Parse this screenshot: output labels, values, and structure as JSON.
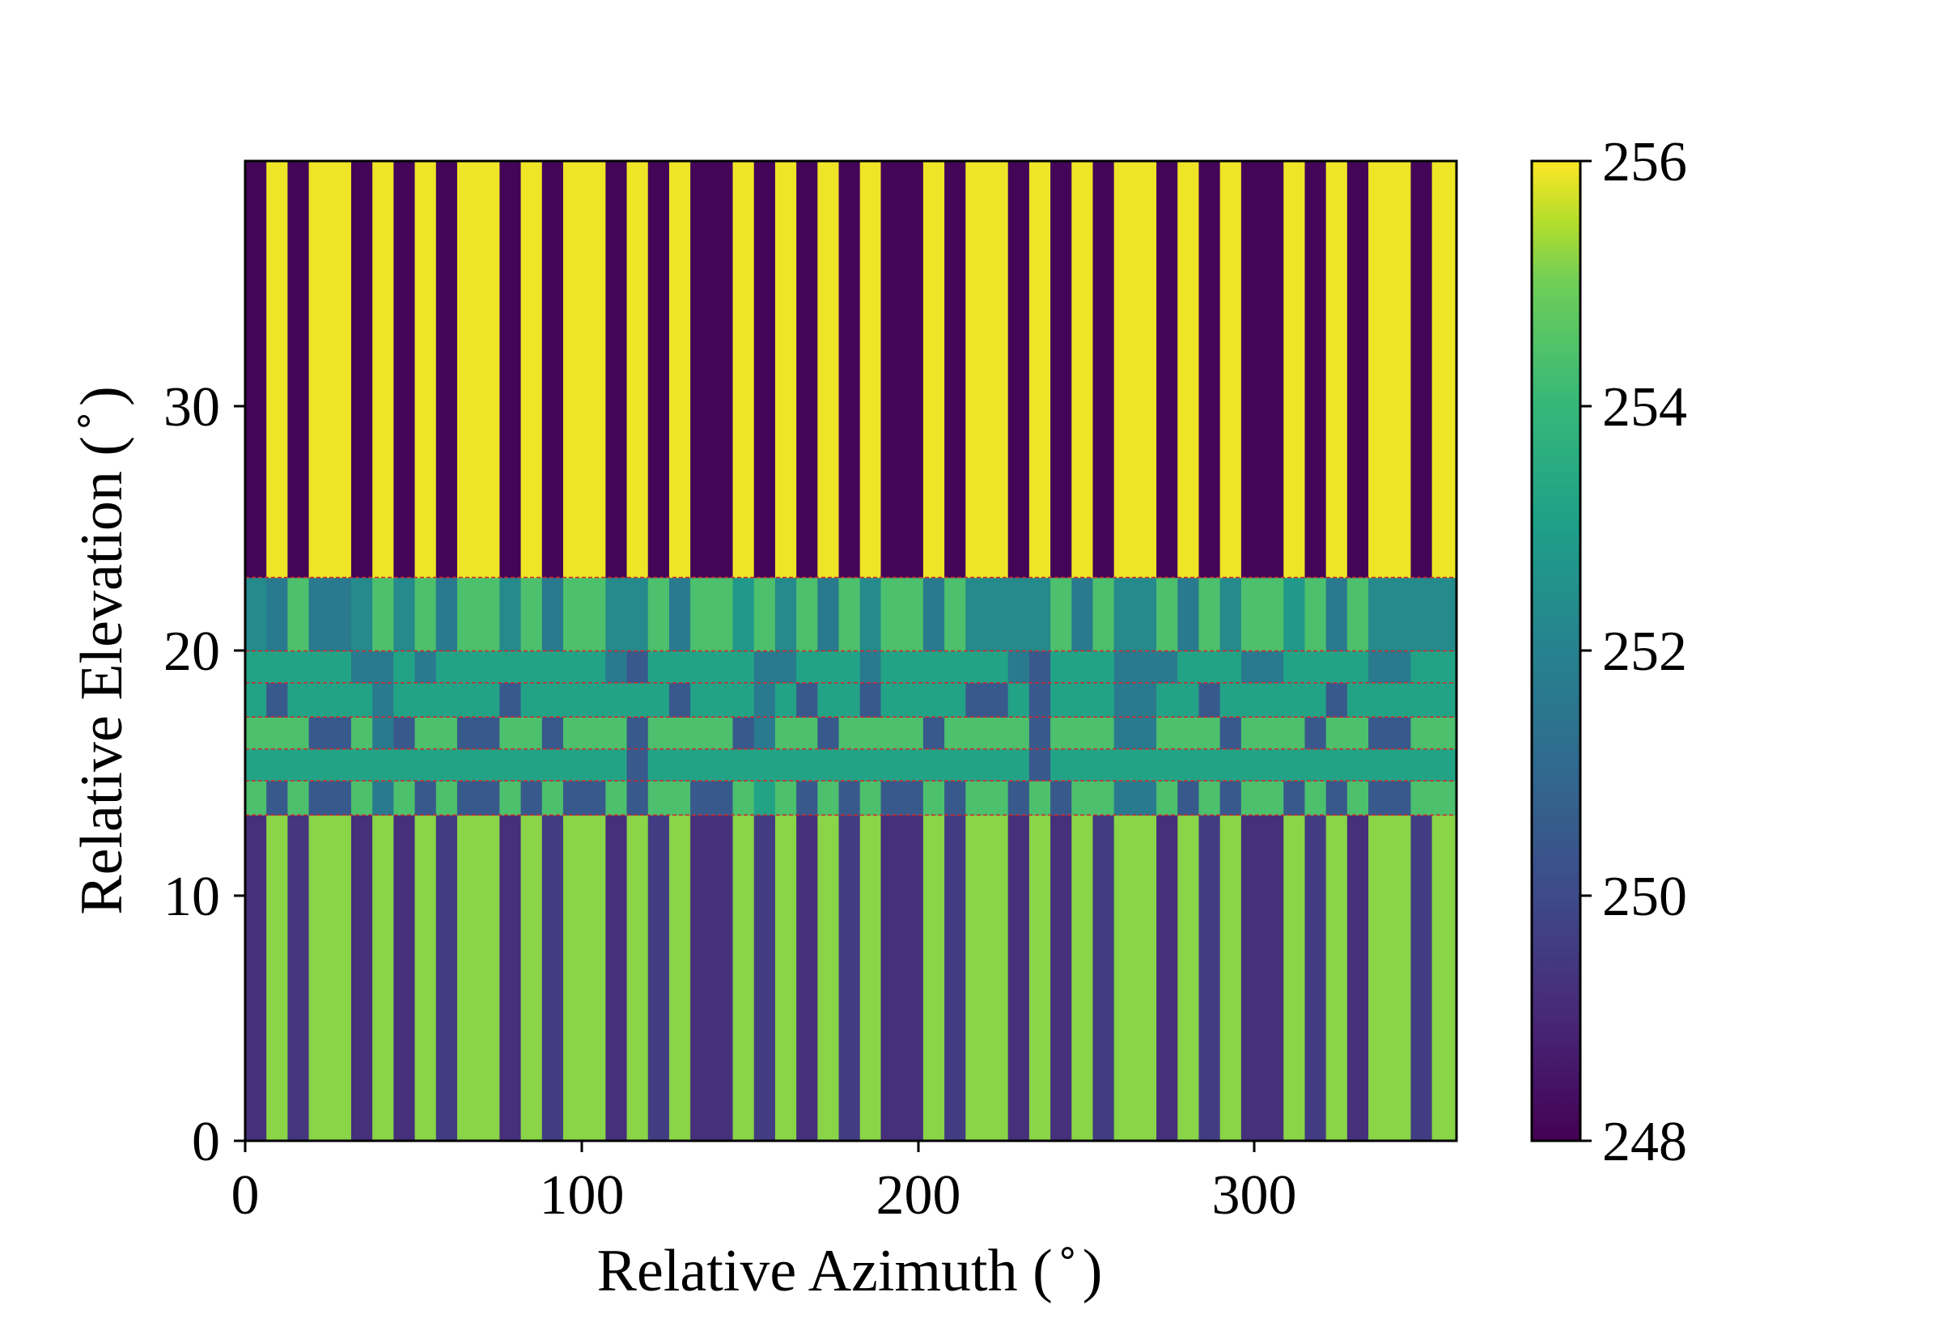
{
  "chart_data": {
    "type": "heatmap",
    "xlabel": "Relative Azimuth ( ̊ )",
    "ylabel": "Relative Elevation ( ̊ )",
    "xlim": [
      0,
      360
    ],
    "ylim": [
      0,
      40
    ],
    "xticks": [
      0,
      100,
      200,
      300
    ],
    "xtick_labels": [
      "0",
      "100",
      "200",
      "300"
    ],
    "yticks": [
      0,
      10,
      20,
      30
    ],
    "ytick_labels": [
      "0",
      "10",
      "20",
      "30"
    ],
    "colormap": "viridis",
    "colorbar": {
      "range": [
        248,
        256
      ],
      "ticks": [
        248,
        250,
        252,
        254,
        256
      ],
      "tick_labels": [
        "248",
        "250",
        "252",
        "254",
        "256"
      ]
    },
    "grid": false,
    "boundary_line_color": "#d62728",
    "boundary_style": "dashed",
    "azimuth_bins": [
      0,
      6.3,
      12.6,
      18.9,
      31.5,
      37.8,
      44.1,
      50.4,
      56.7,
      63,
      75.6,
      81.9,
      88.2,
      94.5,
      107.1,
      113.4,
      119.7,
      126,
      132.3,
      144.9,
      151.2,
      157.5,
      163.8,
      170.1,
      176.4,
      182.7,
      188.9,
      201.5,
      207.8,
      214.1,
      226.7,
      233,
      239.3,
      245.6,
      251.9,
      258.2,
      270.8,
      277.1,
      283.4,
      289.7,
      296,
      308.6,
      314.9,
      321.2,
      327.5,
      333.8,
      346.4,
      352.7,
      360
    ],
    "elevation_bins": [
      0,
      13.3,
      14.7,
      16,
      17.3,
      18.7,
      20,
      23,
      40
    ],
    "values": [
      [
        249.2,
        255.2,
        249.4,
        255.2,
        249.2,
        255.2,
        249.2,
        255.2,
        249.6,
        255.2,
        249.2,
        255.2,
        249.6,
        255.2,
        249.2,
        255.2,
        249.6,
        255.2,
        249.2,
        255.2,
        249.6,
        255.2,
        249.2,
        255.2,
        249.6,
        255.2,
        249.2,
        255.2,
        249.6,
        255.2,
        249.2,
        255.2,
        249.2,
        255.2,
        249.6,
        255.2,
        249.2,
        255.2,
        249.6,
        255.2,
        249.2,
        255.2,
        249.6,
        255.2,
        249.2,
        255.2,
        249.6,
        255.2
      ],
      [
        254.4,
        250.5,
        254.4,
        250.5,
        254.4,
        251.7,
        254.4,
        250.5,
        254.4,
        250.5,
        254.4,
        250.5,
        254.4,
        250.5,
        254.4,
        250.5,
        254.4,
        254.4,
        250.5,
        254.4,
        253.2,
        254.4,
        250.5,
        254.4,
        250.5,
        254.4,
        250.5,
        254.4,
        250.5,
        254.4,
        250.5,
        254.4,
        250.5,
        254.4,
        254.4,
        251.7,
        254.4,
        250.5,
        254.4,
        250.5,
        254.4,
        250.5,
        254.4,
        250.5,
        254.4,
        250.5,
        254.4,
        254.4
      ],
      [
        253.2,
        253.2,
        253.2,
        253.2,
        253.2,
        253.2,
        253.2,
        253.2,
        253.2,
        253.2,
        253.2,
        253.2,
        253.2,
        253.2,
        253.2,
        250.5,
        253.2,
        253.2,
        253.2,
        253.2,
        253.2,
        253.2,
        253.2,
        253.2,
        253.2,
        253.2,
        253.2,
        253.2,
        253.2,
        253.2,
        253.2,
        250.5,
        253.2,
        253.2,
        253.2,
        253.2,
        253.2,
        253.2,
        253.2,
        253.2,
        253.2,
        253.2,
        253.2,
        253.2,
        253.2,
        253.2,
        253.2,
        253.2
      ],
      [
        254.4,
        254.4,
        254.4,
        250.5,
        254.4,
        251.7,
        250.5,
        254.4,
        254.4,
        250.5,
        254.4,
        254.4,
        250.5,
        254.4,
        254.4,
        250.5,
        254.4,
        254.4,
        254.4,
        250.5,
        251.7,
        254.4,
        254.4,
        250.5,
        254.4,
        254.4,
        254.4,
        250.5,
        254.4,
        254.4,
        254.4,
        250.5,
        254.4,
        254.4,
        254.4,
        251.7,
        254.4,
        254.4,
        254.4,
        250.5,
        254.4,
        254.4,
        250.5,
        254.4,
        254.4,
        250.5,
        254.4,
        254.4
      ],
      [
        253.2,
        250.5,
        253.2,
        253.2,
        253.2,
        251.7,
        253.2,
        253.2,
        253.2,
        253.2,
        250.5,
        253.2,
        253.2,
        253.2,
        253.2,
        253.2,
        253.2,
        250.5,
        253.2,
        253.2,
        251.7,
        253.2,
        250.5,
        253.2,
        253.2,
        250.5,
        253.2,
        253.2,
        253.2,
        250.5,
        253.2,
        250.5,
        253.2,
        253.2,
        253.2,
        251.7,
        253.2,
        253.2,
        250.5,
        253.2,
        253.2,
        253.2,
        253.2,
        250.5,
        253.2,
        253.2,
        253.2,
        253.2
      ],
      [
        253.2,
        253.2,
        253.2,
        253.2,
        251.7,
        251.7,
        253.2,
        251.7,
        253.2,
        253.2,
        253.2,
        253.2,
        253.2,
        253.2,
        251.7,
        250.5,
        253.2,
        253.2,
        253.2,
        253.2,
        251.7,
        251.7,
        253.2,
        253.2,
        253.2,
        251.7,
        253.2,
        253.2,
        253.2,
        253.2,
        251.7,
        250.5,
        253.2,
        253.2,
        253.2,
        251.7,
        251.7,
        253.2,
        253.2,
        253.2,
        251.7,
        253.2,
        253.2,
        253.2,
        253.2,
        251.7,
        253.2,
        253.2
      ],
      [
        252.3,
        251.7,
        254.4,
        251.7,
        252.3,
        254.4,
        252.3,
        254.4,
        251.7,
        254.4,
        252.3,
        254.4,
        251.7,
        254.4,
        252.3,
        252.3,
        254.4,
        251.7,
        254.4,
        252.8,
        254.4,
        252.3,
        254.4,
        251.7,
        254.4,
        252.3,
        254.4,
        251.7,
        254.4,
        252.3,
        252.3,
        252.3,
        254.4,
        251.7,
        254.4,
        252.3,
        254.4,
        251.7,
        254.4,
        252.3,
        254.4,
        252.8,
        254.4,
        251.7,
        254.4,
        252.3,
        252.3,
        252.3
      ],
      [
        248.1,
        255.9,
        248.1,
        255.9,
        248.1,
        255.9,
        248.1,
        255.9,
        248.1,
        255.9,
        248.1,
        255.9,
        248.1,
        255.9,
        248.1,
        255.9,
        248.1,
        255.9,
        248.1,
        255.9,
        248.1,
        255.9,
        248.1,
        255.9,
        248.1,
        255.9,
        248.1,
        255.9,
        248.1,
        255.9,
        248.1,
        255.9,
        248.1,
        255.9,
        248.1,
        255.9,
        248.1,
        255.9,
        248.1,
        255.9,
        248.1,
        255.9,
        248.1,
        255.9,
        248.1,
        255.9,
        248.1,
        255.9
      ]
    ]
  }
}
